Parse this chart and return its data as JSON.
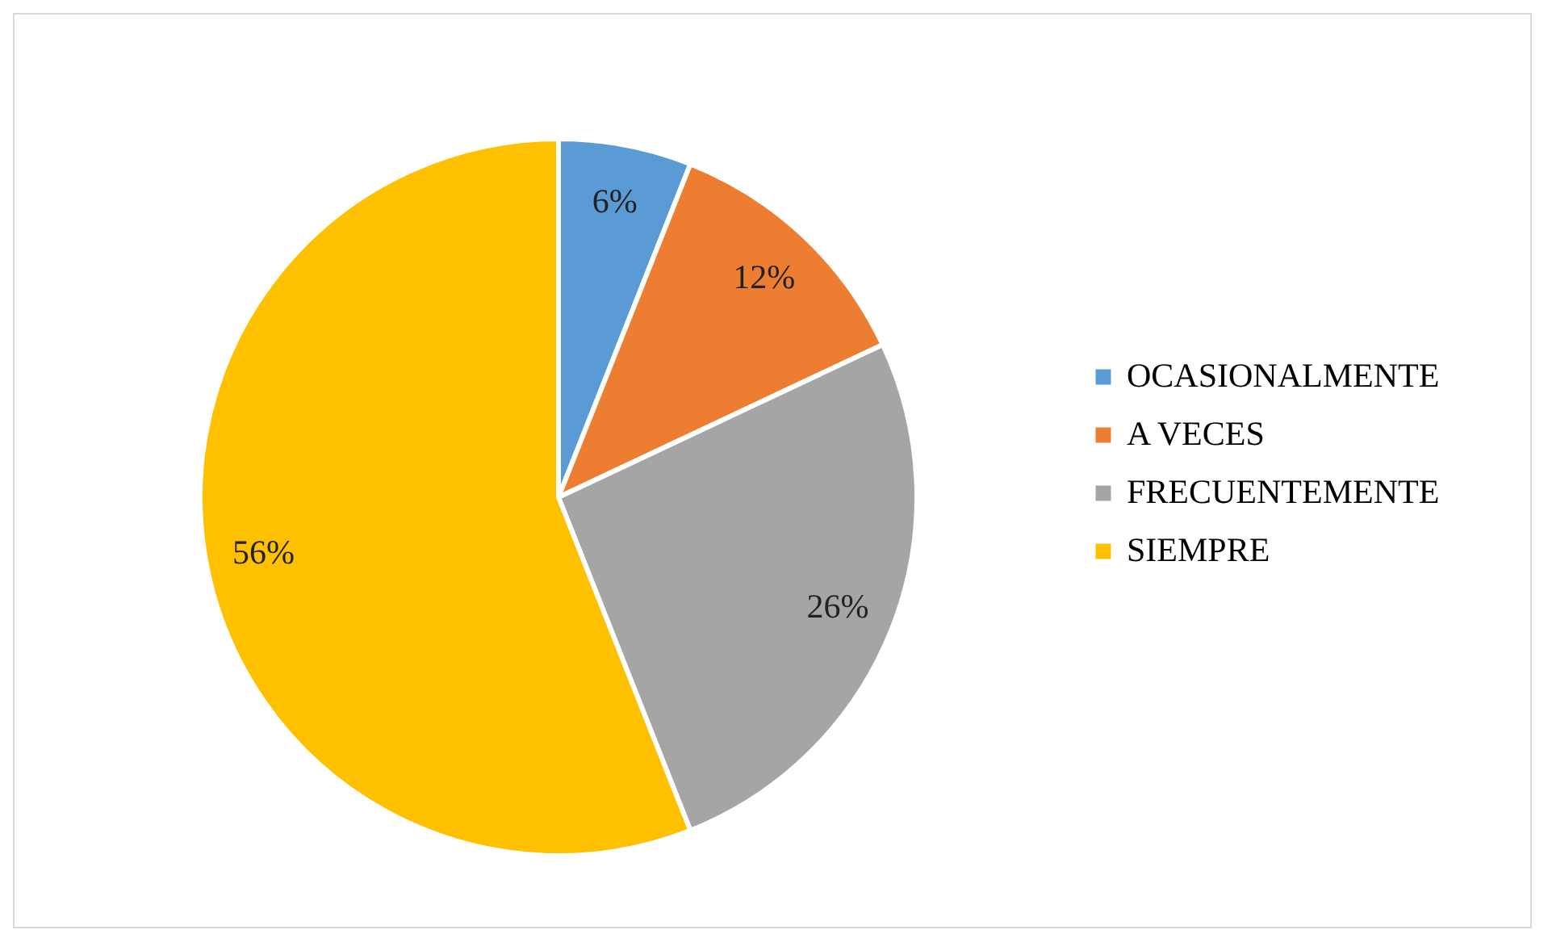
{
  "chart_data": {
    "type": "pie",
    "categories": [
      "OCASIONALMENTE",
      "A VECES",
      "FRECUENTEMENTE",
      "SIEMPRE"
    ],
    "values": [
      6,
      12,
      26,
      56
    ],
    "colors": [
      "#5b9bd5",
      "#ed7d31",
      "#a5a5a5",
      "#ffc000"
    ],
    "value_labels": [
      "6%",
      "12%",
      "26%",
      "56%"
    ],
    "legend": "right"
  }
}
